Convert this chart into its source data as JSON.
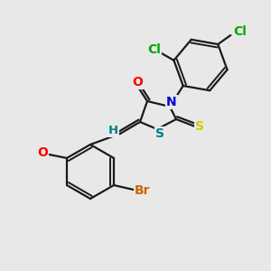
{
  "bg_color": "#e8e8e8",
  "bond_color": "#1a1a1a",
  "atom_colors": {
    "O": "#ff0000",
    "N": "#0000cd",
    "S_thioxo": "#cccc00",
    "S_ring": "#008080",
    "Cl": "#00aa00",
    "Br": "#cc6600",
    "H": "#008080",
    "C": "#1a1a1a"
  },
  "figsize": [
    3.0,
    3.0
  ],
  "dpi": 100
}
